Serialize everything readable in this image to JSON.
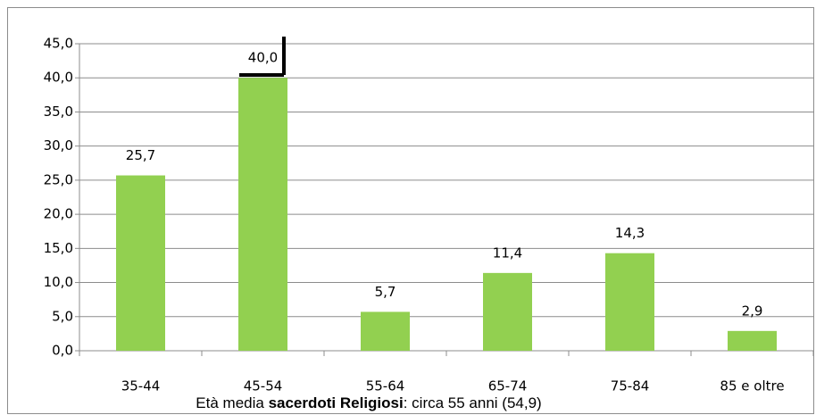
{
  "chart_data": {
    "type": "bar",
    "categories": [
      "35-44",
      "45-54",
      "55-64",
      "65-74",
      "75-84",
      "85 e oltre"
    ],
    "values": [
      25.7,
      40.0,
      5.7,
      11.4,
      14.3,
      2.9
    ],
    "value_labels": [
      "25,7",
      "40,0",
      "5,7",
      "11,4",
      "14,3",
      "2,9"
    ],
    "color": "#92d050",
    "ylim": [
      0,
      45
    ],
    "yticks": [
      {
        "value": 0,
        "label": "0,0"
      },
      {
        "value": 5,
        "label": "5,0"
      },
      {
        "value": 10,
        "label": "10,0"
      },
      {
        "value": 15,
        "label": "15,0"
      },
      {
        "value": 20,
        "label": "20,0"
      },
      {
        "value": 25,
        "label": "25,0"
      },
      {
        "value": 30,
        "label": "30,0"
      },
      {
        "value": 35,
        "label": "35,0"
      },
      {
        "value": 40,
        "label": "40,0"
      },
      {
        "value": 45,
        "label": "45,0"
      }
    ],
    "grid": true,
    "caption": [
      "Età media ",
      "sacerdoti Religiosi",
      ": circa 55 anni (54,9)"
    ]
  }
}
